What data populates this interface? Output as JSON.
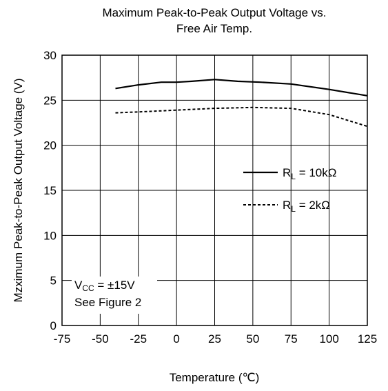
{
  "chart_data": {
    "type": "line",
    "title_line1": "Maximum Peak-to-Peak Output Voltage vs.",
    "title_line2": "Free Air Temp.",
    "xlabel": "Temperature (℃)",
    "ylabel": "Mzximum Peak-to-Peak Output Voltage (V)",
    "xlim": [
      -75,
      125
    ],
    "ylim": [
      0,
      30
    ],
    "xticks": [
      -75,
      -50,
      -25,
      0,
      25,
      50,
      75,
      100,
      125
    ],
    "yticks": [
      0,
      5,
      10,
      15,
      20,
      25,
      30
    ],
    "grid": true,
    "legend_position": "right",
    "series": [
      {
        "name": "RL = 10kΩ",
        "label_main": "R",
        "label_sub": "L",
        "label_rest": " = 10kΩ",
        "style": "solid",
        "x": [
          -40,
          -25,
          -10,
          0,
          10,
          25,
          40,
          55,
          75,
          100,
          125
        ],
        "y": [
          26.3,
          26.7,
          27.0,
          27.0,
          27.1,
          27.3,
          27.1,
          27.0,
          26.8,
          26.2,
          25.5
        ]
      },
      {
        "name": "RL = 2kΩ",
        "label_main": "R",
        "label_sub": "L",
        "label_rest": " = 2kΩ",
        "style": "dashed",
        "x": [
          -40,
          -25,
          0,
          25,
          50,
          75,
          100,
          125
        ],
        "y": [
          23.6,
          23.7,
          23.9,
          24.1,
          24.2,
          24.1,
          23.4,
          22.1
        ]
      }
    ],
    "annotations": {
      "vcc_main": "V",
      "vcc_sub": "CC",
      "vcc_rest": " = ±15V",
      "figure_ref": "See Figure 2"
    }
  }
}
